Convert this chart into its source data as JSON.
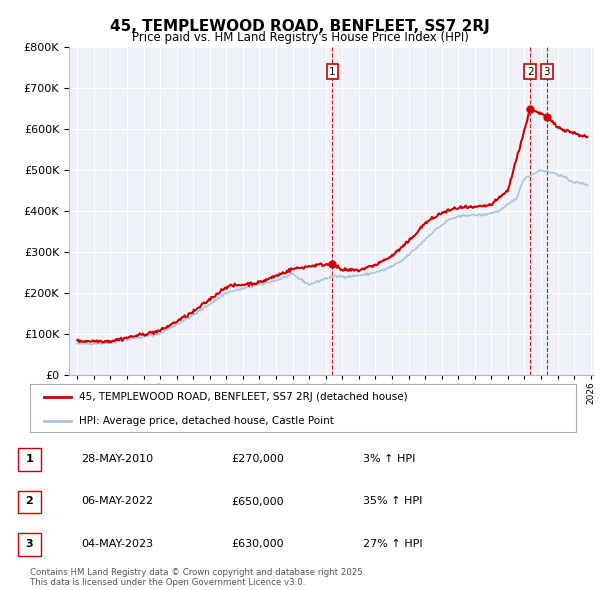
{
  "title": "45, TEMPLEWOOD ROAD, BENFLEET, SS7 2RJ",
  "subtitle": "Price paid vs. HM Land Registry's House Price Index (HPI)",
  "legend_line1": "45, TEMPLEWOOD ROAD, BENFLEET, SS7 2RJ (detached house)",
  "legend_line2": "HPI: Average price, detached house, Castle Point",
  "sale_points": [
    {
      "label": "1",
      "year": 2010.41,
      "price": 270000
    },
    {
      "label": "2",
      "year": 2022.35,
      "price": 650000
    },
    {
      "label": "3",
      "year": 2023.35,
      "price": 630000
    }
  ],
  "table_rows": [
    [
      "1",
      "28-MAY-2010",
      "£270,000",
      "3% ↑ HPI"
    ],
    [
      "2",
      "06-MAY-2022",
      "£650,000",
      "35% ↑ HPI"
    ],
    [
      "3",
      "04-MAY-2023",
      "£630,000",
      "27% ↑ HPI"
    ]
  ],
  "hpi_anchors_x": [
    1995,
    1997,
    2000,
    2002,
    2004,
    2005.5,
    2007,
    2008,
    2009,
    2010,
    2010.5,
    2011.5,
    2012.5,
    2013.5,
    2014.5,
    2015.5,
    2016.5,
    2017.5,
    2018.5,
    2019.5,
    2020.5,
    2021.5,
    2022,
    2022.5,
    2023,
    2023.5,
    2024,
    2024.5,
    2025,
    2025.8
  ],
  "hpi_anchors_y": [
    75000,
    78000,
    100000,
    145000,
    200000,
    215000,
    230000,
    245000,
    220000,
    235000,
    240000,
    240000,
    245000,
    255000,
    275000,
    310000,
    350000,
    380000,
    390000,
    390000,
    400000,
    430000,
    480000,
    490000,
    500000,
    495000,
    490000,
    480000,
    470000,
    465000
  ],
  "price_anchors_x": [
    1995.0,
    1997,
    2000,
    2002,
    2004,
    2006,
    2008,
    2009.5,
    2010.41,
    2011,
    2012,
    2013,
    2014,
    2015,
    2016,
    2017,
    2018,
    2019,
    2020,
    2021,
    2022.35,
    2023.35,
    2024,
    2025,
    2025.8
  ],
  "price_anchors_y": [
    82000,
    82000,
    107000,
    153000,
    215000,
    225000,
    258000,
    268000,
    270000,
    255000,
    255000,
    268000,
    290000,
    325000,
    370000,
    395000,
    408000,
    408000,
    415000,
    450000,
    650000,
    630000,
    605000,
    590000,
    580000
  ],
  "hpi_line_color": "#aac4e0",
  "price_line_color": "#cc0000",
  "sale_marker_color": "#cc0000",
  "plot_bg_color": "#eef2f8",
  "ylim": [
    0,
    800000
  ],
  "xlim_start": 1995,
  "xlim_end": 2026,
  "vline_color": "#cc0000",
  "footer": "Contains HM Land Registry data © Crown copyright and database right 2025.\nThis data is licensed under the Open Government Licence v3.0."
}
